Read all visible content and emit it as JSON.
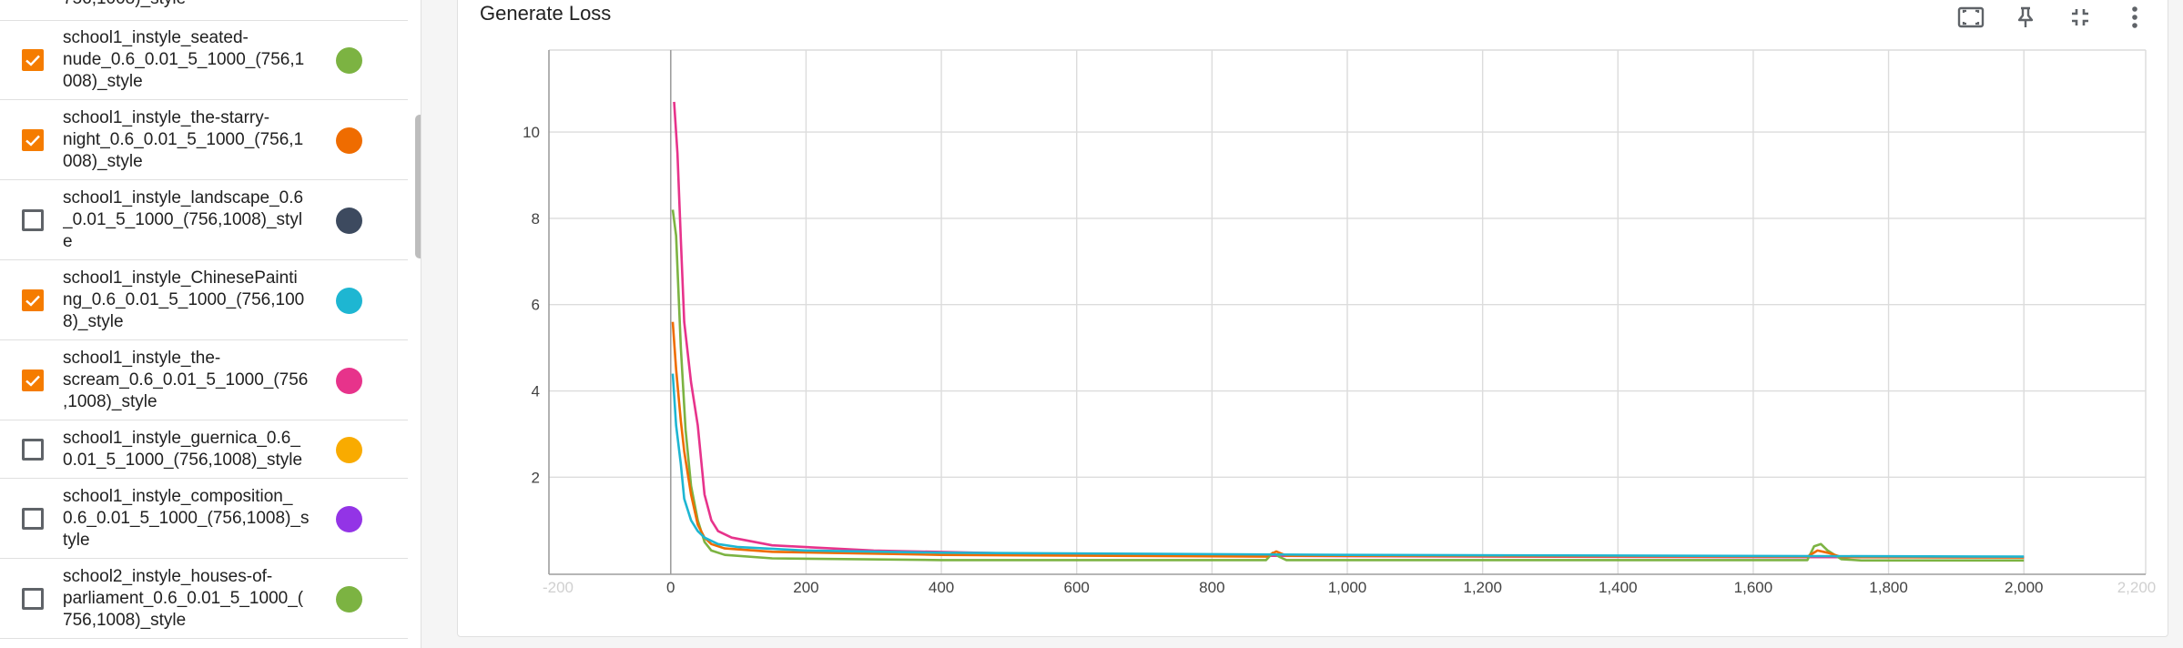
{
  "sidebar": {
    "partial_top_label": "756,1008)_style",
    "runs": [
      {
        "label_lines": [
          "school1_instyle_seated-",
          "nude_0.6_0.01_5_1000_(756,1",
          "008)_style"
        ],
        "checked": true,
        "color": "#7cb342"
      },
      {
        "label_lines": [
          "school1_instyle_the-starry-",
          "night_0.6_0.01_5_1000_(756,1",
          "008)_style"
        ],
        "checked": true,
        "color": "#ef6c00"
      },
      {
        "label_lines": [
          "school1_instyle_landscape_0.6",
          "_0.01_5_1000_(756,1008)_styl",
          "e"
        ],
        "checked": false,
        "color": "#3d4a5f"
      },
      {
        "label_lines": [
          "school1_instyle_ChinesePainti",
          "ng_0.6_0.01_5_1000_(756,100",
          "8)_style"
        ],
        "checked": true,
        "color": "#1eb6d2"
      },
      {
        "label_lines": [
          "school1_instyle_the-",
          "scream_0.6_0.01_5_1000_(756",
          ",1008)_style"
        ],
        "checked": true,
        "color": "#e7338b"
      },
      {
        "label_lines": [
          "school1_instyle_guernica_0.6_",
          "0.01_5_1000_(756,1008)_style"
        ],
        "checked": false,
        "color": "#f9ab00"
      },
      {
        "label_lines": [
          "school1_instyle_composition_",
          "0.6_0.01_5_1000_(756,1008)_s",
          "tyle"
        ],
        "checked": false,
        "color": "#9334e6"
      },
      {
        "label_lines": [
          "school2_instyle_houses-of-",
          "parliament_0.6_0.01_5_1000_(",
          "756,1008)_style"
        ],
        "checked": false,
        "color": "#7cb342"
      }
    ]
  },
  "card": {
    "title": "Generate Loss",
    "toolbar": [
      {
        "name": "fit-domain-button",
        "icon": "fit-to-screen-icon"
      },
      {
        "name": "pin-button",
        "icon": "pin-icon"
      },
      {
        "name": "collapse-button",
        "icon": "collapse-icon"
      },
      {
        "name": "more-options-button",
        "icon": "more-vert-icon"
      }
    ]
  },
  "chart_data": {
    "type": "line",
    "title": "Generate Loss",
    "xlabel": "",
    "ylabel": "",
    "xlim": [
      -180,
      2180
    ],
    "ylim": [
      -0.25,
      11.9
    ],
    "x_ticks": [
      0,
      200,
      400,
      600,
      800,
      1000,
      1200,
      1400,
      1600,
      1800,
      2000
    ],
    "x_tick_labels": [
      "0",
      "200",
      "400",
      "600",
      "800",
      "1,000",
      "1,200",
      "1,400",
      "1,600",
      "1,800",
      "2,000"
    ],
    "x_faded_tick_labels": [
      "-200",
      "2,200"
    ],
    "y_ticks": [
      2,
      4,
      6,
      8,
      10
    ],
    "y_tick_labels": [
      "2",
      "4",
      "6",
      "8",
      "10"
    ],
    "grid": true,
    "series": [
      {
        "color": "#e7338b",
        "points": [
          [
            5,
            10.7
          ],
          [
            10,
            9.5
          ],
          [
            15,
            7.5
          ],
          [
            20,
            5.6
          ],
          [
            30,
            4.2
          ],
          [
            40,
            3.2
          ],
          [
            50,
            1.6
          ],
          [
            60,
            1.0
          ],
          [
            70,
            0.75
          ],
          [
            90,
            0.6
          ],
          [
            150,
            0.42
          ],
          [
            300,
            0.3
          ],
          [
            600,
            0.2
          ],
          [
            1000,
            0.17
          ],
          [
            1500,
            0.15
          ],
          [
            2000,
            0.14
          ]
        ]
      },
      {
        "color": "#7cb342",
        "points": [
          [
            3,
            8.2
          ],
          [
            8,
            7.6
          ],
          [
            15,
            5.0
          ],
          [
            22,
            3.1
          ],
          [
            30,
            1.8
          ],
          [
            40,
            1.0
          ],
          [
            50,
            0.5
          ],
          [
            60,
            0.3
          ],
          [
            80,
            0.2
          ],
          [
            150,
            0.12
          ],
          [
            400,
            0.08
          ],
          [
            880,
            0.08
          ],
          [
            890,
            0.25
          ],
          [
            900,
            0.15
          ],
          [
            910,
            0.08
          ],
          [
            1680,
            0.08
          ],
          [
            1690,
            0.4
          ],
          [
            1700,
            0.45
          ],
          [
            1710,
            0.3
          ],
          [
            1730,
            0.1
          ],
          [
            1760,
            0.07
          ],
          [
            2000,
            0.07
          ]
        ]
      },
      {
        "color": "#ef6c00",
        "points": [
          [
            3,
            5.6
          ],
          [
            8,
            4.5
          ],
          [
            15,
            3.3
          ],
          [
            20,
            2.6
          ],
          [
            30,
            1.6
          ],
          [
            40,
            0.9
          ],
          [
            50,
            0.6
          ],
          [
            60,
            0.45
          ],
          [
            80,
            0.35
          ],
          [
            150,
            0.27
          ],
          [
            400,
            0.2
          ],
          [
            880,
            0.16
          ],
          [
            895,
            0.28
          ],
          [
            910,
            0.18
          ],
          [
            1680,
            0.16
          ],
          [
            1695,
            0.3
          ],
          [
            1710,
            0.25
          ],
          [
            1730,
            0.15
          ],
          [
            2000,
            0.14
          ]
        ]
      },
      {
        "color": "#1eb6d2",
        "points": [
          [
            3,
            4.4
          ],
          [
            8,
            3.2
          ],
          [
            15,
            2.3
          ],
          [
            20,
            1.5
          ],
          [
            30,
            1.0
          ],
          [
            40,
            0.75
          ],
          [
            50,
            0.6
          ],
          [
            70,
            0.45
          ],
          [
            100,
            0.38
          ],
          [
            200,
            0.3
          ],
          [
            400,
            0.25
          ],
          [
            1000,
            0.2
          ],
          [
            2000,
            0.16
          ]
        ]
      }
    ]
  }
}
